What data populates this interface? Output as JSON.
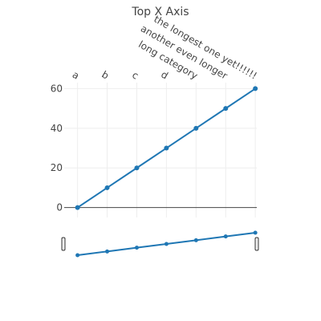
{
  "chart_data": {
    "type": "line",
    "title": "Top X Axis",
    "x_axis_side": "top",
    "categories": [
      "a",
      "b",
      "c",
      "d",
      "long category",
      "another even longer",
      "the longest one yet!!!!!!"
    ],
    "series": [
      {
        "values": [
          0,
          10,
          20,
          30,
          40,
          50,
          60
        ],
        "color": "#1f77b4"
      }
    ],
    "ylim": [
      -5,
      63
    ],
    "yticks": [
      0,
      20,
      40,
      60
    ],
    "grid": true,
    "rangeslider": true,
    "colors": {
      "line": "#1f77b4",
      "grid": "#eeeeee",
      "zeroline": "#444444",
      "text": "#444444"
    }
  }
}
